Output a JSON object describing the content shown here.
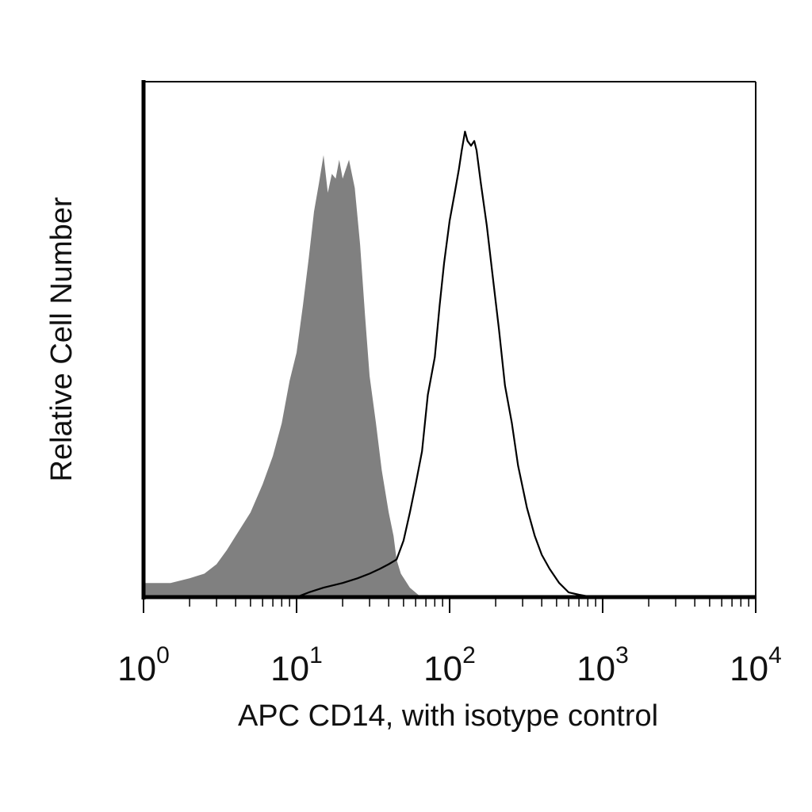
{
  "chart_data": {
    "type": "area",
    "xscale": "log",
    "xlim": [
      1,
      10000
    ],
    "ylim": [
      0,
      1
    ],
    "xlabel": "APC CD14, with isotype control",
    "ylabel": "Relative Cell Number",
    "x_tick_labels": [
      {
        "base": "10",
        "exp": "0"
      },
      {
        "base": "10",
        "exp": "1"
      },
      {
        "base": "10",
        "exp": "2"
      },
      {
        "base": "10",
        "exp": "3"
      },
      {
        "base": "10",
        "exp": "4"
      }
    ],
    "x_tick_values": [
      1,
      10,
      100,
      1000,
      10000
    ],
    "grid": false,
    "series": [
      {
        "style": "filled",
        "color": "#808080",
        "points": [
          [
            1.0,
            0.03
          ],
          [
            1.5,
            0.03
          ],
          [
            2.0,
            0.04
          ],
          [
            2.5,
            0.05
          ],
          [
            3.0,
            0.07
          ],
          [
            3.5,
            0.1
          ],
          [
            4.0,
            0.13
          ],
          [
            5.0,
            0.18
          ],
          [
            6.0,
            0.24
          ],
          [
            7.0,
            0.3
          ],
          [
            8.0,
            0.37
          ],
          [
            9.0,
            0.46
          ],
          [
            10.0,
            0.52
          ],
          [
            11.0,
            0.62
          ],
          [
            12.0,
            0.72
          ],
          [
            13.0,
            0.82
          ],
          [
            14.0,
            0.88
          ],
          [
            15.0,
            0.94
          ],
          [
            16.0,
            0.86
          ],
          [
            17.0,
            0.9
          ],
          [
            18.0,
            0.89
          ],
          [
            19.0,
            0.93
          ],
          [
            20.0,
            0.89
          ],
          [
            22.0,
            0.93
          ],
          [
            24.0,
            0.87
          ],
          [
            26.0,
            0.75
          ],
          [
            28.0,
            0.6
          ],
          [
            30.0,
            0.47
          ],
          [
            33.0,
            0.37
          ],
          [
            36.0,
            0.27
          ],
          [
            40.0,
            0.18
          ],
          [
            43.0,
            0.13
          ],
          [
            45.0,
            0.08
          ],
          [
            48.0,
            0.05
          ],
          [
            55.0,
            0.02
          ],
          [
            65.0,
            0.0
          ]
        ]
      },
      {
        "style": "outline",
        "color": "#000000",
        "points": [
          [
            10.0,
            0.0
          ],
          [
            12.0,
            0.01
          ],
          [
            15.0,
            0.02
          ],
          [
            20.0,
            0.03
          ],
          [
            25.0,
            0.04
          ],
          [
            30.0,
            0.05
          ],
          [
            35.0,
            0.06
          ],
          [
            40.0,
            0.07
          ],
          [
            45.0,
            0.08
          ],
          [
            50.0,
            0.12
          ],
          [
            55.0,
            0.18
          ],
          [
            60.0,
            0.24
          ],
          [
            66.0,
            0.31
          ],
          [
            72.0,
            0.43
          ],
          [
            80.0,
            0.51
          ],
          [
            86.0,
            0.62
          ],
          [
            92.0,
            0.71
          ],
          [
            100.0,
            0.8
          ],
          [
            108.0,
            0.86
          ],
          [
            115.0,
            0.91
          ],
          [
            120.0,
            0.95
          ],
          [
            126.0,
            0.99
          ],
          [
            131.0,
            0.97
          ],
          [
            138.0,
            0.96
          ],
          [
            145.0,
            0.97
          ],
          [
            150.0,
            0.95
          ],
          [
            160.0,
            0.88
          ],
          [
            175.0,
            0.79
          ],
          [
            190.0,
            0.69
          ],
          [
            210.0,
            0.57
          ],
          [
            230.0,
            0.45
          ],
          [
            255.0,
            0.37
          ],
          [
            280.0,
            0.28
          ],
          [
            320.0,
            0.19
          ],
          [
            360.0,
            0.13
          ],
          [
            400.0,
            0.09
          ],
          [
            450.0,
            0.06
          ],
          [
            520.0,
            0.03
          ],
          [
            600.0,
            0.01
          ],
          [
            700.0,
            0.005
          ],
          [
            850.0,
            0.0
          ]
        ]
      }
    ]
  }
}
